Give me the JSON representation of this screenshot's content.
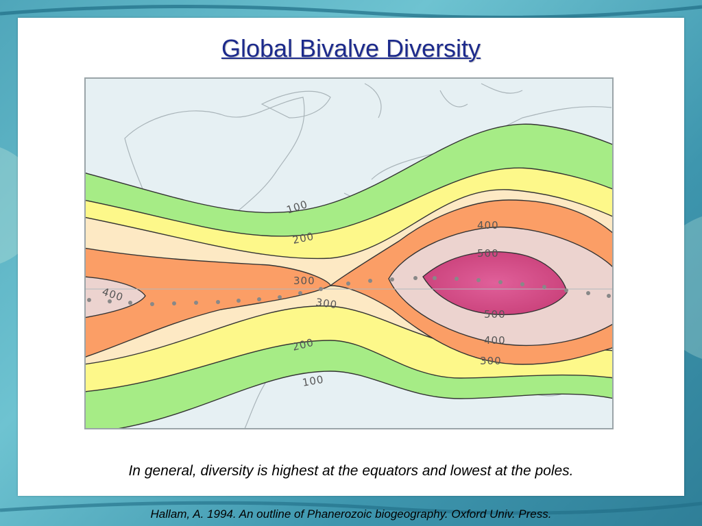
{
  "slide": {
    "title": "Global Bivalve Diversity",
    "caption": "In general, diversity is highest at the equators and lowest at the poles.",
    "citation": "Hallam, A. 1994. An outline of Phanerozoic biogeography. Oxford Univ. Press."
  },
  "map": {
    "contour_labels": [
      {
        "name": "label-100-north",
        "text": "100"
      },
      {
        "name": "label-200-north",
        "text": "200"
      },
      {
        "name": "label-300-west-upper",
        "text": "300"
      },
      {
        "name": "label-300-west-lower",
        "text": "300"
      },
      {
        "name": "label-400-west",
        "text": "400"
      },
      {
        "name": "label-400-east-upper",
        "text": "400"
      },
      {
        "name": "label-500-upper",
        "text": "500"
      },
      {
        "name": "label-500-lower",
        "text": "500"
      },
      {
        "name": "label-400-east-lower",
        "text": "400"
      },
      {
        "name": "label-300-east",
        "text": "300"
      },
      {
        "name": "label-200-south",
        "text": "200"
      },
      {
        "name": "label-100-south",
        "text": "100"
      }
    ],
    "colors": {
      "ocean": "#e6f0f3",
      "band_100": "#a6ec86",
      "band_200": "#fdf88a",
      "band_300": "#fde9c4",
      "band_400": "#fb9e66",
      "band_500": "#ecd3cf",
      "band_max": "#d94f86"
    }
  }
}
